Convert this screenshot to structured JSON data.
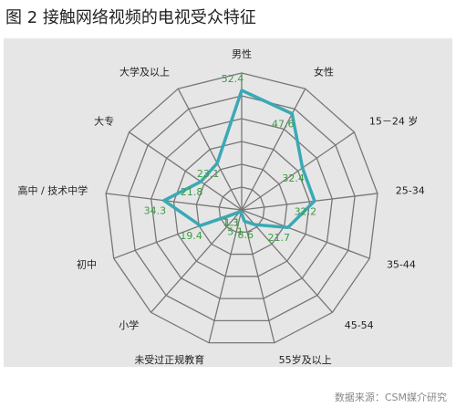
{
  "chart_data": {
    "type": "radar",
    "title": "图 2 接触网络视频的电视受众特征",
    "source": "数据来源：CSM媒介研究",
    "categories": [
      "男性",
      "女性",
      "15－24 岁",
      "25-34",
      "35-44",
      "45-54",
      "55岁及以上",
      "未受过正规教育",
      "小学",
      "初中",
      "高中 / 技术中学",
      "大专",
      "大学及以上"
    ],
    "values": [
      52.4,
      47.6,
      32.4,
      32.2,
      21.7,
      8.6,
      5.1,
      1.1,
      1.3,
      19.4,
      34.3,
      21.8,
      23.1
    ],
    "color": "#3aa9b5",
    "label_color": "#3d9a45",
    "rlim": [
      0,
      60
    ],
    "rticks": [
      10,
      20,
      30,
      40,
      50,
      60
    ],
    "grid": true
  }
}
